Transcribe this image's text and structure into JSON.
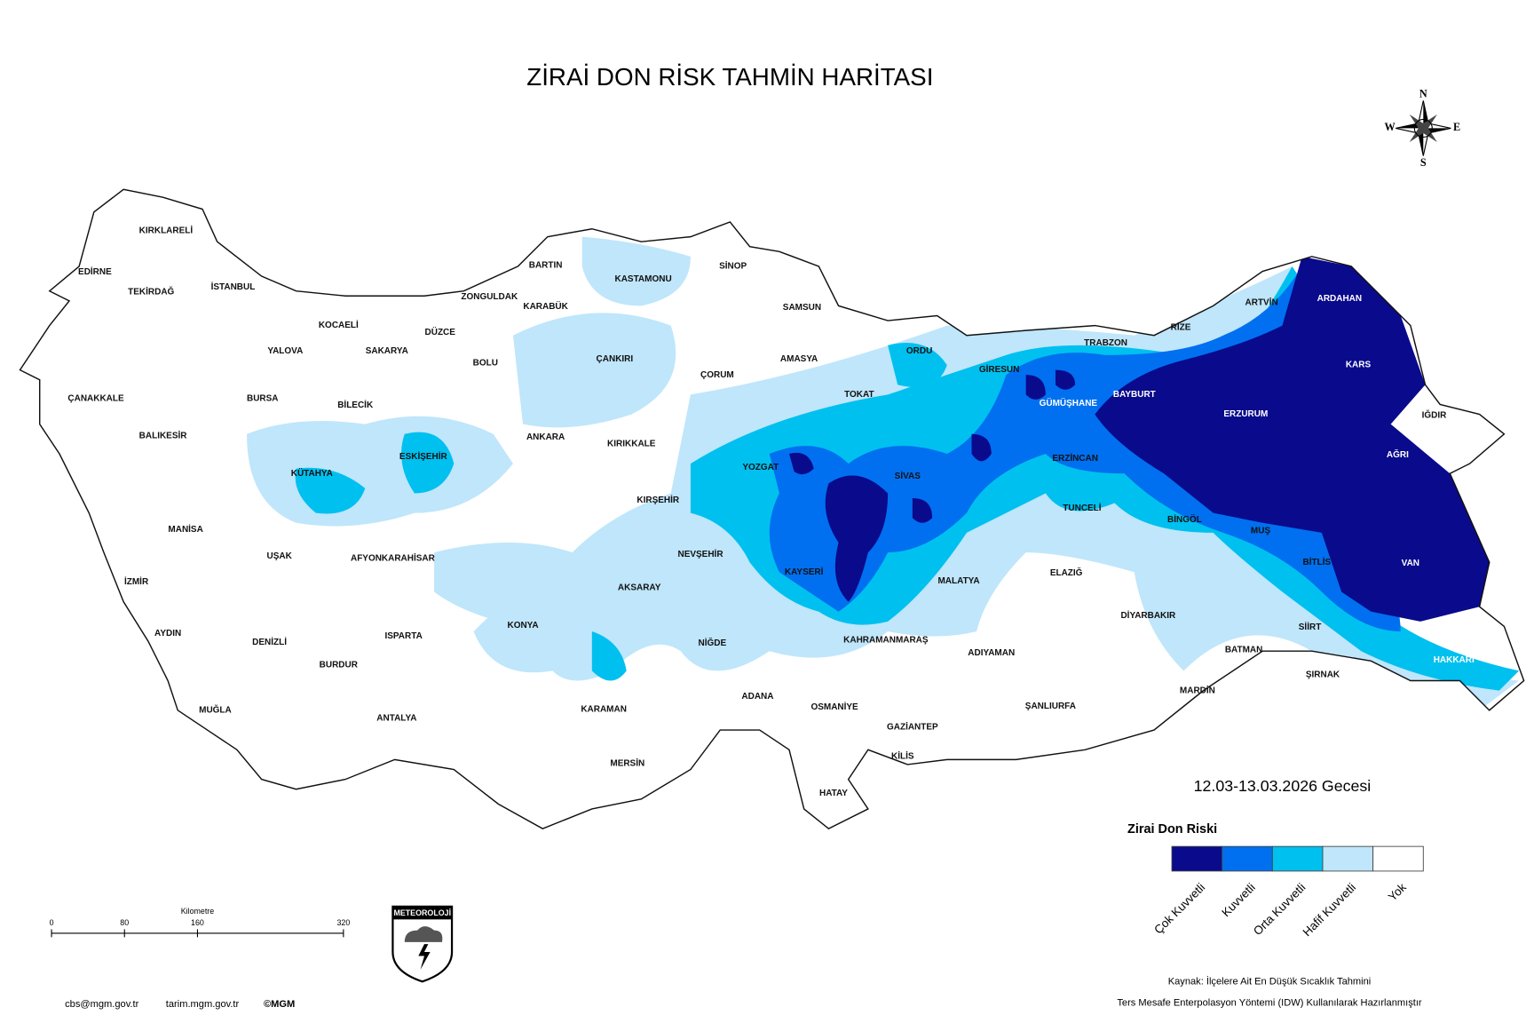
{
  "title": "ZİRAİ DON RİSK TAHMİN HARİTASI",
  "date": "12.03-13.03.2026 Gecesi",
  "compass": {
    "n": "N",
    "e": "E",
    "s": "S",
    "w": "W"
  },
  "legend": {
    "title": "Zirai Don Riski",
    "items": [
      {
        "label": "Çok Kuvvetli",
        "color": "#0a0a8c"
      },
      {
        "label": "Kuvvetli",
        "color": "#0070f0"
      },
      {
        "label": "Orta Kuvvetli",
        "color": "#00c0ef"
      },
      {
        "label": "Hafif Kuvvetli",
        "color": "#bfe6fb"
      },
      {
        "label": "Yok",
        "color": "#ffffff"
      }
    ]
  },
  "scale": {
    "unit": "Kilometre",
    "ticks": [
      0,
      80,
      160,
      320
    ]
  },
  "logo": "METEOROLOJİ",
  "footer": {
    "email": "cbs@mgm.gov.tr",
    "site": "tarim.mgm.gov.tr",
    "copyright": "©MGM"
  },
  "source": [
    "Kaynak: İlçelere Ait En Düşük Sıcaklık Tahmini",
    "Ters Mesafe Enterpolasyon Yöntemi (IDW) Kullanılarak Hazırlanmıştır"
  ],
  "provinces": [
    "KIRKLARELİ",
    "EDİRNE",
    "TEKİRDAĞ",
    "İSTANBUL",
    "KOCAELİ",
    "YALOVA",
    "SAKARYA",
    "DÜZCE",
    "ZONGULDAK",
    "BARTIN",
    "KARABÜK",
    "KASTAMONU",
    "SİNOP",
    "SAMSUN",
    "ÇANAKKALE",
    "BURSA",
    "BİLECİK",
    "BOLU",
    "ÇANKIRI",
    "ÇORUM",
    "AMASYA",
    "ORDU",
    "GİRESUN",
    "TRABZON",
    "RİZE",
    "ARTVİN",
    "ARDAHAN",
    "KARS",
    "BAYBURT",
    "GÜMÜŞHANE",
    "ERZURUM",
    "IĞDIR",
    "AĞRI",
    "TOKAT",
    "ERZİNCAN",
    "SİVAS",
    "YOZGAT",
    "KIRIKKALE",
    "ANKARA",
    "ESKİŞEHİR",
    "KÜTAHYA",
    "BALIKESİR",
    "MANİSA",
    "UŞAK",
    "AFYONKARAHİSAR",
    "KIRŞEHİR",
    "NEVŞEHİR",
    "KAYSERİ",
    "TUNCELİ",
    "BİNGÖL",
    "MUŞ",
    "BİTLİS",
    "VAN",
    "İZMİR",
    "AYDIN",
    "DENİZLİ",
    "ISPARTA",
    "KONYA",
    "AKSARAY",
    "NİĞDE",
    "MALATYA",
    "ELAZIĞ",
    "DİYARBAKIR",
    "SİİRT",
    "BATMAN",
    "HAKKARİ",
    "ŞIRNAK",
    "MARDİN",
    "ADIYAMAN",
    "KAHRAMANMARAŞ",
    "ŞANLIURFA",
    "GAZİANTEP",
    "KİLİS",
    "OSMANİYE",
    "ADANA",
    "HATAY",
    "MERSİN",
    "KARAMAN",
    "ANTALYA",
    "BURDUR",
    "MUĞLA"
  ]
}
